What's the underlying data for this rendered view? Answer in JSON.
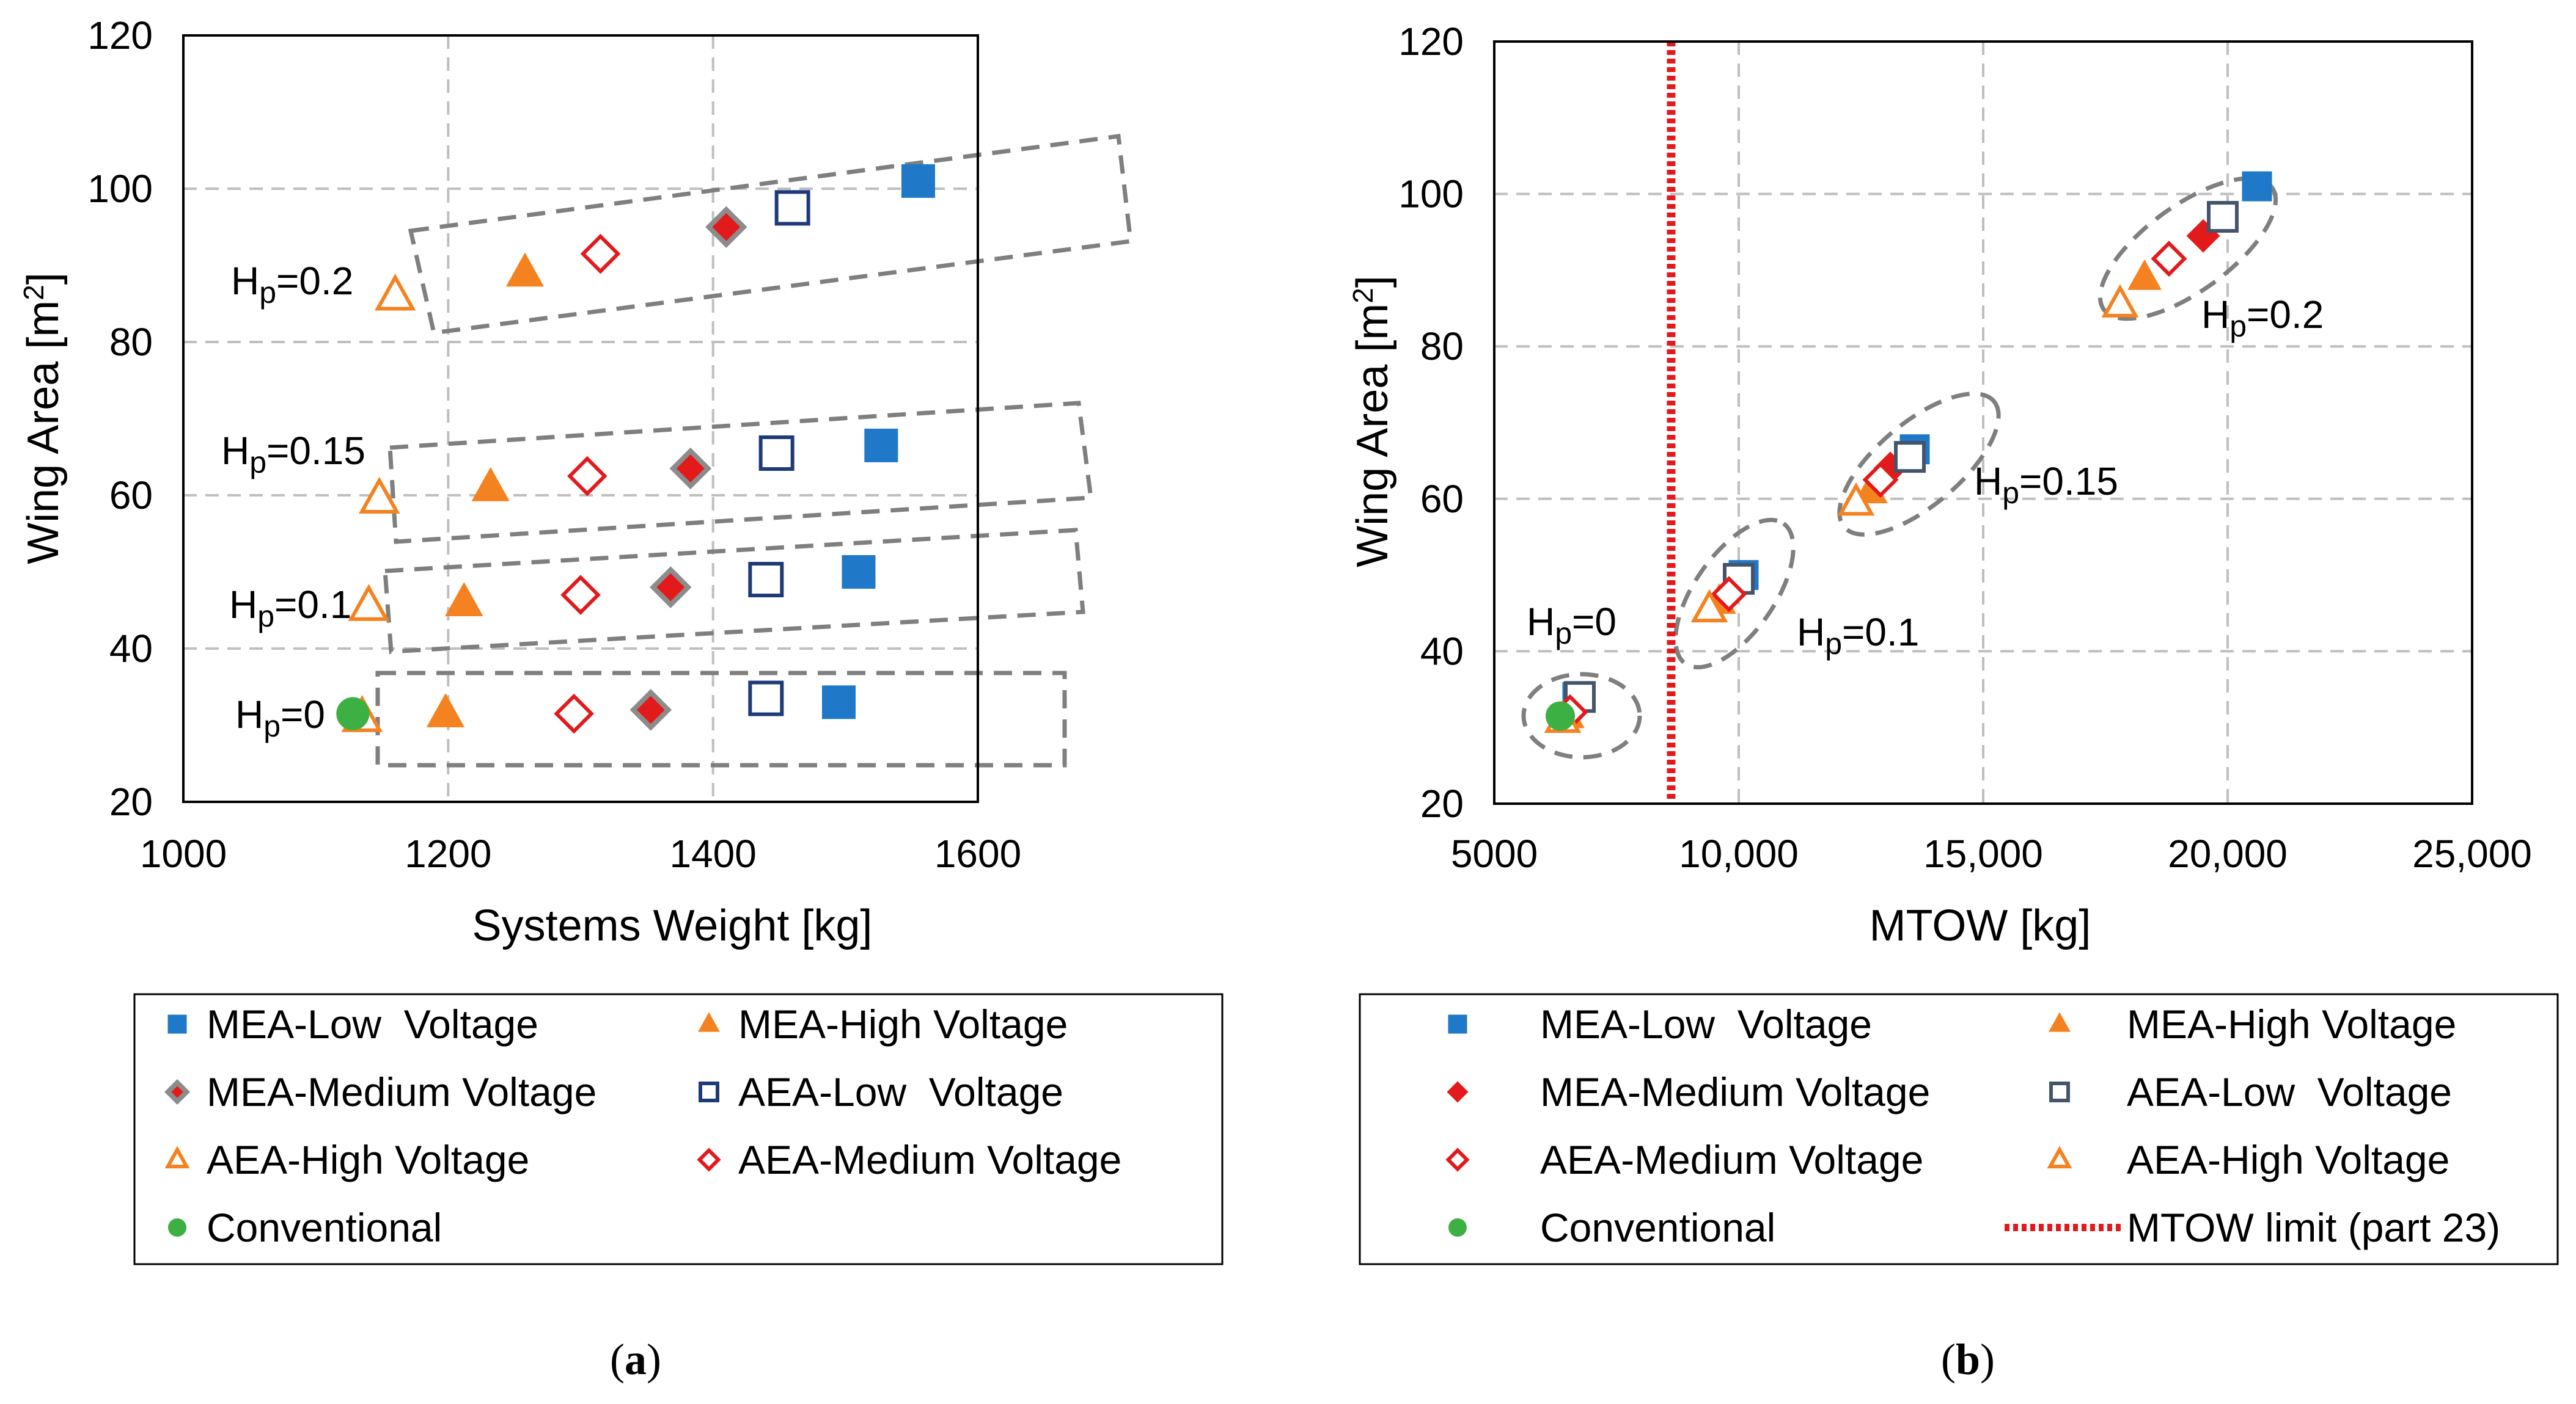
{
  "chart_data": [
    {
      "type": "scatter",
      "caption_letter": "a",
      "xlabel": "Systems Weight [kg]",
      "ylabel": "Wing Area [m2]",
      "ylabel_base": "Wing Area [m",
      "ylabel_sup": "2",
      "ylabel_close": "]",
      "xlim": [
        1000,
        1600
      ],
      "ylim": [
        20,
        120
      ],
      "xticks": [
        1000,
        1200,
        1400,
        1600
      ],
      "xtick_labels": [
        "1000",
        "1200",
        "1400",
        "1600"
      ],
      "yticks": [
        20,
        40,
        60,
        80,
        100,
        120
      ],
      "ytick_labels": [
        "20",
        "40",
        "60",
        "80",
        "100",
        "120"
      ],
      "grid": true,
      "series": [
        {
          "name": "MEA-Low  Voltage",
          "marker": "square-filled",
          "color": "#1f78c8",
          "points": [
            [
              1495,
              33
            ],
            [
              1510,
              50
            ],
            [
              1527,
              66.5
            ],
            [
              1555,
              101
            ]
          ]
        },
        {
          "name": "MEA-High Voltage",
          "marker": "triangle-filled",
          "color": "#f58220",
          "points": [
            [
              1198,
              31.5
            ],
            [
              1212,
              46
            ],
            [
              1232,
              61
            ],
            [
              1258,
              89
            ]
          ]
        },
        {
          "name": "MEA-Medium Voltage",
          "marker": "diamond-filled-grey",
          "color": "#e31a1c",
          "points": [
            [
              1353,
              32
            ],
            [
              1368,
              48
            ],
            [
              1383,
              63.5
            ],
            [
              1410,
              95
            ]
          ]
        },
        {
          "name": "AEA-Low  Voltage",
          "marker": "square-open",
          "color": "#1f3a78",
          "points": [
            [
              1440,
              33.5
            ],
            [
              1440,
              49
            ],
            [
              1448,
              65.5
            ],
            [
              1460,
              97.5
            ]
          ]
        },
        {
          "name": "AEA-High Voltage",
          "marker": "triangle-open",
          "color": "#f58220",
          "points": [
            [
              1135,
              31
            ],
            [
              1140,
              45.5
            ],
            [
              1148,
              59.5
            ],
            [
              1160,
              86
            ]
          ]
        },
        {
          "name": "AEA-Medium Voltage",
          "marker": "diamond-open",
          "color": "#e31a1c",
          "points": [
            [
              1295,
              31.5
            ],
            [
              1300,
              47
            ],
            [
              1305,
              62.5
            ],
            [
              1315,
              91.5
            ]
          ]
        },
        {
          "name": "Conventional",
          "marker": "circle-filled",
          "color": "#3cb043",
          "points": [
            [
              1128,
              31.5
            ]
          ]
        }
      ],
      "annotations": [
        {
          "text": "Hp=0",
          "sub_base": "H",
          "sub": "p",
          "rest": "=0"
        },
        {
          "text": "Hp=0.1",
          "sub_base": "H",
          "sub": "p",
          "rest": "=0.1"
        },
        {
          "text": "Hp=0.15",
          "sub_base": "H",
          "sub": "p",
          "rest": "=0.15"
        },
        {
          "text": "Hp=0.2",
          "sub_base": "H",
          "sub": "p",
          "rest": "=0.2"
        }
      ],
      "legend_position": "below",
      "legend_order": [
        "MEA-Low  Voltage",
        "MEA-High Voltage",
        "MEA-Medium Voltage",
        "AEA-Low  Voltage",
        "AEA-High Voltage",
        "AEA-Medium Voltage",
        "Conventional"
      ]
    },
    {
      "type": "scatter",
      "caption_letter": "b",
      "xlabel": "MTOW [kg]",
      "ylabel": "Wing Area [m2]",
      "ylabel_base": "Wing Area [m",
      "ylabel_sup": "2",
      "ylabel_close": "]",
      "xlim": [
        5000,
        25000
      ],
      "ylim": [
        20,
        120
      ],
      "xticks": [
        5000,
        10000,
        15000,
        20000,
        25000
      ],
      "xtick_labels": [
        "5000",
        "10,000",
        "15,000",
        "20,000",
        "25,000"
      ],
      "yticks": [
        20,
        40,
        60,
        80,
        100,
        120
      ],
      "ytick_labels": [
        "20",
        "40",
        "60",
        "80",
        "100",
        "120"
      ],
      "grid": true,
      "series": [
        {
          "name": "MEA-Low  Voltage",
          "marker": "square-filled",
          "color": "#1f78c8",
          "points": [
            [
              6700,
              34
            ],
            [
              10100,
              50
            ],
            [
              13600,
              66.5
            ],
            [
              20600,
              101
            ]
          ]
        },
        {
          "name": "MEA-High Voltage",
          "marker": "triangle-filled",
          "color": "#f58220",
          "points": [
            [
              6500,
              31.5
            ],
            [
              9600,
              46.5
            ],
            [
              12700,
              61
            ],
            [
              18300,
              89
            ]
          ]
        },
        {
          "name": "MEA-Medium Voltage",
          "marker": "diamond-filled",
          "color": "#e31a1c",
          "points": [
            [
              6650,
              32.5
            ],
            [
              9900,
              48
            ],
            [
              13100,
              64
            ],
            [
              19500,
              94.5
            ]
          ]
        },
        {
          "name": "AEA-Low  Voltage",
          "marker": "square-open",
          "color": "#44546a",
          "points": [
            [
              6750,
              34
            ],
            [
              10000,
              49.5
            ],
            [
              13500,
              65.5
            ],
            [
              19900,
              97
            ]
          ]
        },
        {
          "name": "AEA-Medium Voltage",
          "marker": "diamond-open",
          "color": "#e31a1c",
          "points": [
            [
              6550,
              32
            ],
            [
              9800,
              47.5
            ],
            [
              12900,
              62.5
            ],
            [
              18800,
              91.5
            ]
          ]
        },
        {
          "name": "AEA-High Voltage",
          "marker": "triangle-open",
          "color": "#f58220",
          "points": [
            [
              6400,
              31
            ],
            [
              9400,
              45.5
            ],
            [
              12400,
              59.5
            ],
            [
              17800,
              85.5
            ]
          ]
        },
        {
          "name": "Conventional",
          "marker": "circle-filled",
          "color": "#3cb043",
          "points": [
            [
              6350,
              31.5
            ]
          ]
        }
      ],
      "reference_lines": [
        {
          "name": "MTOW limit (part 23)",
          "axis": "x",
          "value": 8618,
          "style": "dotted",
          "color": "#e31a1c"
        }
      ],
      "annotations": [
        {
          "text": "Hp=0",
          "sub_base": "H",
          "sub": "p",
          "rest": "=0"
        },
        {
          "text": "Hp=0.1",
          "sub_base": "H",
          "sub": "p",
          "rest": "=0.1"
        },
        {
          "text": "Hp=0.15",
          "sub_base": "H",
          "sub": "p",
          "rest": "=0.15"
        },
        {
          "text": "Hp=0.2",
          "sub_base": "H",
          "sub": "p",
          "rest": "=0.2"
        }
      ],
      "legend_position": "below",
      "legend_order": [
        "MEA-Low  Voltage",
        "MEA-High Voltage",
        "MEA-Medium Voltage",
        "AEA-Low  Voltage",
        "AEA-Medium Voltage",
        "AEA-High Voltage",
        "Conventional",
        "MTOW limit (part 23)"
      ]
    }
  ],
  "captions": {
    "a": "a",
    "b": "b",
    "open": "(",
    "close": ")"
  }
}
